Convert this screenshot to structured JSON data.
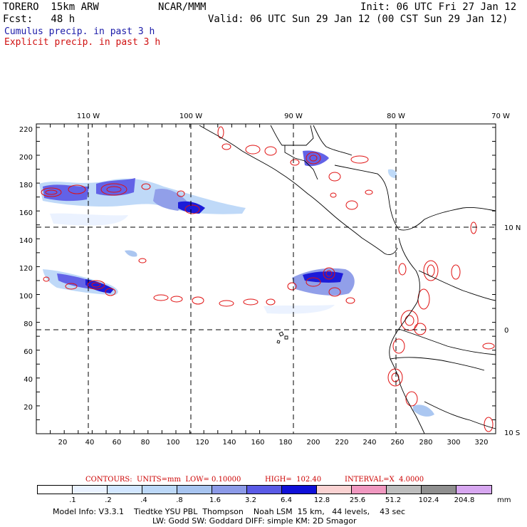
{
  "header": {
    "model": "TORERO  15km ARW",
    "org": "NCAR/MMM",
    "init": "Init: 06 UTC Fri 27 Jan 12",
    "fcst": "Fcst:   48 h",
    "valid": "Valid: 06 UTC Sun 29 Jan 12 (00 CST Sun 29 Jan 12)",
    "cumulus": "Cumulus precip. in past 3 h",
    "explicit": "Explicit precip. in past 3 h"
  },
  "axes": {
    "lon_labels": [
      "110 W",
      "100 W",
      "90 W",
      "80 W",
      "70 W"
    ],
    "lat_labels": [
      "10 N",
      "0",
      "10 S"
    ],
    "x_ticks": [
      "20",
      "40",
      "60",
      "80",
      "100",
      "120",
      "140",
      "160",
      "180",
      "200",
      "220",
      "240",
      "260",
      "280",
      "300",
      "320"
    ],
    "y_ticks": [
      "220",
      "200",
      "180",
      "160",
      "140",
      "120",
      "100",
      "80",
      "60",
      "40",
      "20"
    ]
  },
  "contours": {
    "label": "CONTOURS:  UNITS=mm  LOW= 0.10000",
    "high": "HIGH=  102.40",
    "interval": "INTERVAL=X  4.0000"
  },
  "legend": {
    "levels": [
      ".1",
      ".2",
      ".4",
      ".8",
      "1.6",
      "3.2",
      "6.4",
      "12.8",
      "25.6",
      "51.2",
      "102.4",
      "204.8"
    ],
    "unit": "mm",
    "colors": [
      "#ffffff",
      "#eaf2ff",
      "#d2e6ff",
      "#bcd8f8",
      "#a7c4f0",
      "#8c9ae8",
      "#5a5ae6",
      "#1010d8",
      "#fad2d2",
      "#f098c0",
      "#bdbdbd",
      "#8f8f8f",
      "#d7a7f0"
    ]
  },
  "footer": {
    "line1": "Model Info: V3.3.1    Tiedtke YSU PBL  Thompson    Noah LSM  15 km,   44 levels,    43 sec",
    "line2": "LW: Godd SW: Goddard DIFF: simple KM: 2D Smagor"
  }
}
